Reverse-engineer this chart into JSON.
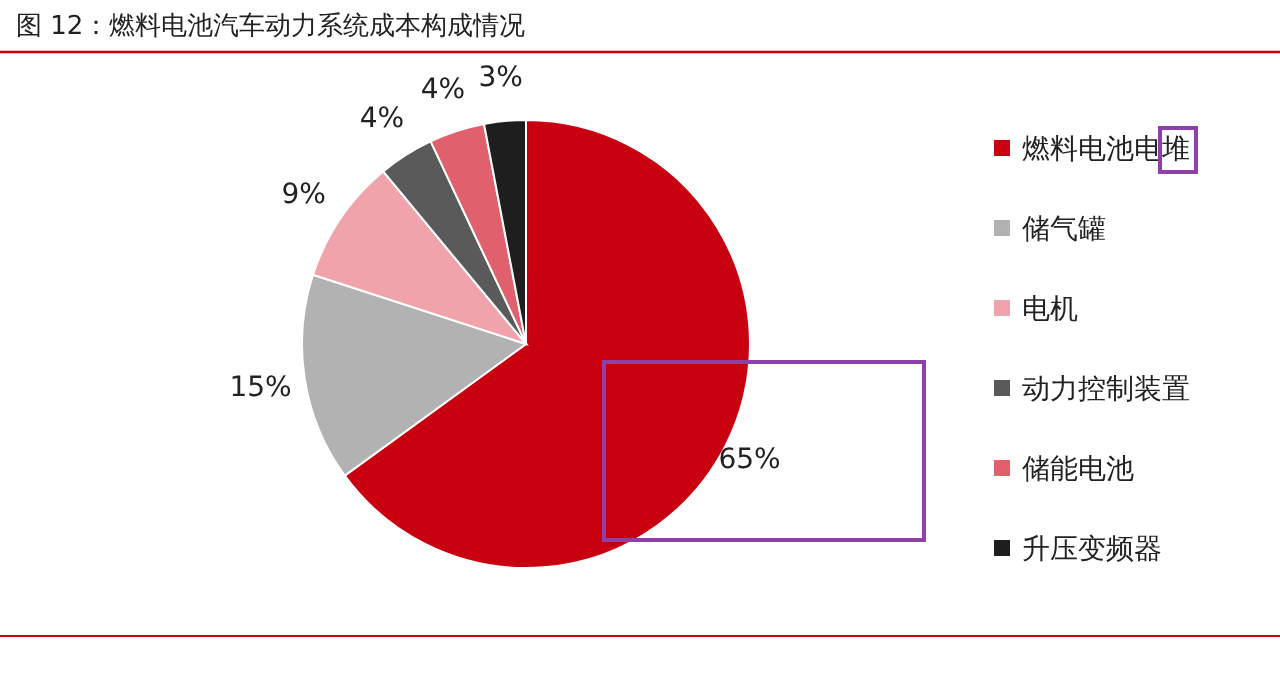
{
  "chart_data": {
    "type": "pie",
    "title": "图 12：燃料电池汽车动力系统成本构成情况",
    "categories": [
      "燃料电池电堆",
      "储气罐",
      "电机",
      "动力控制装置",
      "储能电池",
      "升压变频器"
    ],
    "values": [
      65,
      15,
      9,
      4,
      4,
      3
    ],
    "colors": [
      "#c8000f",
      "#b2b2b2",
      "#f0a3aa",
      "#5a5a5a",
      "#e0606e",
      "#1e1e1e"
    ],
    "value_labels": [
      "65%",
      "15%",
      "9%",
      "4%",
      "4%",
      "3%"
    ],
    "legend": "right"
  }
}
